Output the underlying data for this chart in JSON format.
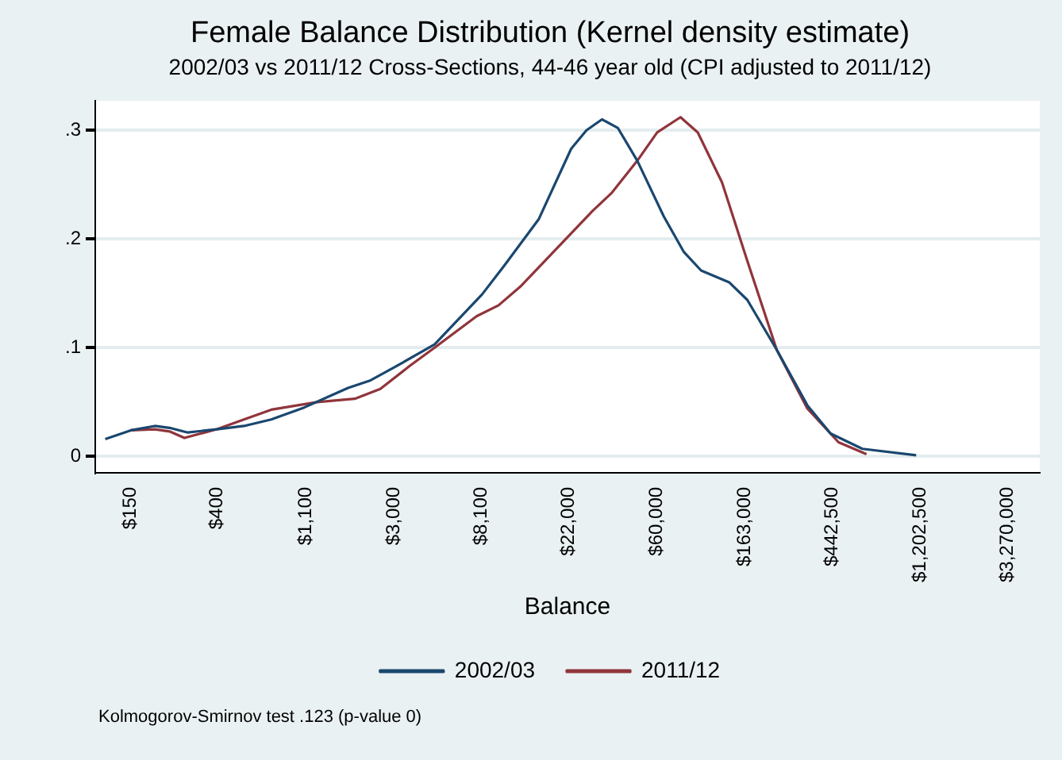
{
  "chart_data": {
    "type": "line",
    "title": "Female Balance Distribution (Kernel density estimate)",
    "subtitle": "2002/03 vs 2011/12 Cross-Sections, 44-46 year old (CPI adjusted to 2011/12)",
    "xlabel": "Balance",
    "log": "x",
    "grid": "y",
    "legend": "bottom",
    "marker": "none",
    "line_style": "solid",
    "xlim": [
      100,
      4700000
    ],
    "ylim": [
      -0.015,
      0.327
    ],
    "xticks": [
      {
        "value": 150,
        "label": "$150"
      },
      {
        "value": 400,
        "label": "$400"
      },
      {
        "value": 1100,
        "label": "$1,100"
      },
      {
        "value": 3000,
        "label": "$3,000"
      },
      {
        "value": 8100,
        "label": "$8,100"
      },
      {
        "value": 22000,
        "label": "$22,000"
      },
      {
        "value": 60000,
        "label": "$60,000"
      },
      {
        "value": 163000,
        "label": "$163,000"
      },
      {
        "value": 442500,
        "label": "$442,500"
      },
      {
        "value": 1202500,
        "label": "$1,202,500"
      },
      {
        "value": 3270000,
        "label": "$3,270,000"
      }
    ],
    "yticks": [
      {
        "value": 0,
        "label": "0"
      },
      {
        "value": 0.1,
        "label": ".1"
      },
      {
        "value": 0.2,
        "label": ".2"
      },
      {
        "value": 0.3,
        "label": ".3"
      }
    ],
    "series": [
      {
        "name": "2002/03",
        "color": "#1a476f",
        "x": [
          112,
          150,
          197,
          237,
          287,
          400,
          544,
          742,
          1080,
          1780,
          2300,
          3020,
          4770,
          8190,
          10500,
          15600,
          22600,
          26900,
          32100,
          38500,
          48000,
          64800,
          81600,
          99300,
          137000,
          168000,
          235000,
          333000,
          434000,
          623000,
          1150000
        ],
        "values": [
          0.016,
          0.024,
          0.028,
          0.026,
          0.022,
          0.025,
          0.028,
          0.034,
          0.045,
          0.063,
          0.07,
          0.082,
          0.103,
          0.149,
          0.175,
          0.218,
          0.283,
          0.3,
          0.31,
          0.302,
          0.272,
          0.221,
          0.188,
          0.171,
          0.16,
          0.144,
          0.098,
          0.047,
          0.021,
          0.007,
          0.001
        ]
      },
      {
        "name": "2011/12",
        "color": "#90353b",
        "x": [
          150,
          197,
          233,
          276,
          400,
          544,
          742,
          1250,
          1920,
          2570,
          3580,
          4770,
          7710,
          9880,
          12800,
          17800,
          28900,
          35700,
          48000,
          60200,
          78500,
          95600,
          126000,
          168000,
          235000,
          333000,
          475000,
          653000
        ],
        "values": [
          0.024,
          0.025,
          0.023,
          0.017,
          0.025,
          0.034,
          0.043,
          0.05,
          0.053,
          0.062,
          0.083,
          0.1,
          0.129,
          0.139,
          0.157,
          0.185,
          0.226,
          0.242,
          0.272,
          0.298,
          0.312,
          0.298,
          0.252,
          0.18,
          0.098,
          0.044,
          0.013,
          0.002
        ]
      }
    ],
    "annotations": [
      "Kolmogorov-Smirnov test .123 (p-value 0)"
    ]
  }
}
